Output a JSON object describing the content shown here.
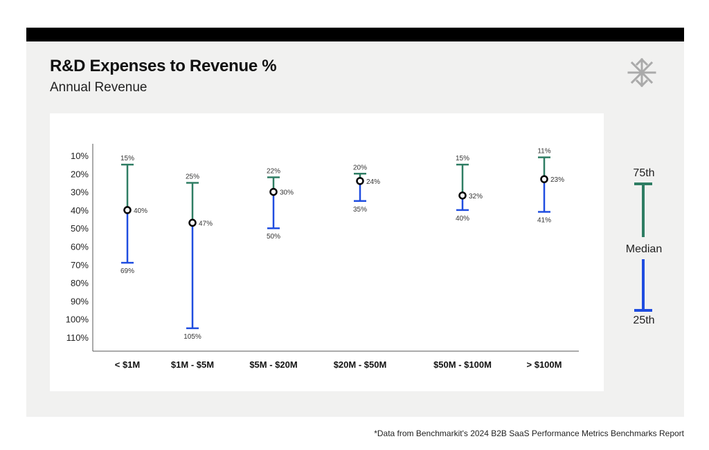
{
  "header": {
    "title": "R&D Expenses to Revenue %",
    "subtitle": "Annual Revenue"
  },
  "legend": {
    "upper_label": "75th",
    "middle_label": "Median",
    "lower_label": "25th"
  },
  "footnote": "*Data from Benchmarkit's 2024 B2B SaaS Performance Metrics Benchmarks Report",
  "colors": {
    "upper": "#2e7d63",
    "lower": "#1f4de0",
    "median_stroke": "#000000",
    "logo": "#aaaaaa"
  },
  "chart_data": {
    "type": "range",
    "title": "R&D Expenses to Revenue %",
    "subtitle": "Annual Revenue",
    "xlabel": "",
    "ylabel": "",
    "y_inverted": true,
    "ylim": [
      10,
      110
    ],
    "y_ticks": [
      "10%",
      "20%",
      "30%",
      "40%",
      "50%",
      "60%",
      "70%",
      "80%",
      "90%",
      "100%",
      "110%"
    ],
    "y_tick_values": [
      10,
      20,
      30,
      40,
      50,
      60,
      70,
      80,
      90,
      100,
      110
    ],
    "categories": [
      "< $1M",
      "$1M - $5M",
      "$5M - $20M",
      "$20M - $50M",
      "$50M - $100M",
      "> $100M"
    ],
    "series": [
      {
        "name": "75th",
        "values": [
          15,
          25,
          22,
          20,
          15,
          11
        ],
        "labels": [
          "15%",
          "25%",
          "22%",
          "20%",
          "15%",
          "11%"
        ]
      },
      {
        "name": "Median",
        "values": [
          40,
          47,
          30,
          24,
          32,
          23
        ],
        "labels": [
          "40%",
          "47%",
          "30%",
          "24%",
          "32%",
          "23%"
        ]
      },
      {
        "name": "25th",
        "values": [
          69,
          105,
          50,
          35,
          40,
          41
        ],
        "labels": [
          "69%",
          "105%",
          "50%",
          "35%",
          "40%",
          "41%"
        ]
      }
    ]
  }
}
